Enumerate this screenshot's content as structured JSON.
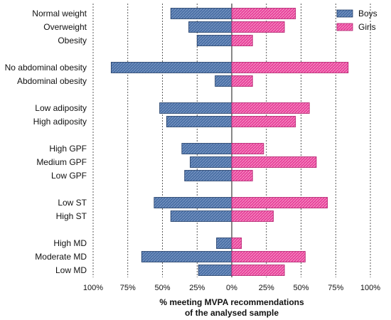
{
  "chart_data": {
    "type": "bar",
    "orientation": "horizontal-diverging",
    "categories": [
      "Normal weight",
      "Overweight",
      "Obesity",
      "No abdominal obesity",
      "Abdominal obesity",
      "Low adiposity",
      "High adiposity",
      "High GPF",
      "Medium GPF",
      "Low GPF",
      "Low ST",
      "High ST",
      "High MD",
      "Moderate MD",
      "Low MD"
    ],
    "groups": [
      [
        "Normal weight",
        "Overweight",
        "Obesity"
      ],
      [
        "No abdominal obesity",
        "Abdominal obesity"
      ],
      [
        "Low adiposity",
        "High adiposity"
      ],
      [
        "High GPF",
        "Medium GPF",
        "Low GPF"
      ],
      [
        "Low ST",
        "High ST"
      ],
      [
        "High MD",
        "Moderate MD",
        "Low MD"
      ]
    ],
    "series": [
      {
        "name": "Boys",
        "side": "left",
        "color": "#4a6fa5",
        "values": [
          44,
          31,
          25,
          87,
          12,
          52,
          47,
          36,
          30,
          34,
          56,
          44,
          11,
          65,
          24
        ]
      },
      {
        "name": "Girls",
        "side": "right",
        "color": "#e8409a",
        "values": [
          46,
          38,
          15,
          84,
          15,
          56,
          46,
          23,
          61,
          15,
          69,
          30,
          7,
          53,
          38
        ]
      }
    ],
    "xlabel": "% meeting MVPA recommendations of the analysed sample",
    "xlabel_lines": [
      "% meeting MVPA recommendations",
      "of the analysed sample"
    ],
    "x_ticks": [
      -100,
      -75,
      -50,
      -25,
      0,
      25,
      50,
      75,
      100
    ],
    "x_tick_labels": [
      "100%",
      "75%",
      "50%",
      "25%",
      "0%",
      "25%",
      "50%",
      "75%",
      "100%"
    ],
    "xlim": [
      -100,
      100
    ],
    "grid": "vertical dotted at 25% steps",
    "legend": "top-right",
    "legend_entries": [
      "Boys",
      "Girls"
    ]
  }
}
